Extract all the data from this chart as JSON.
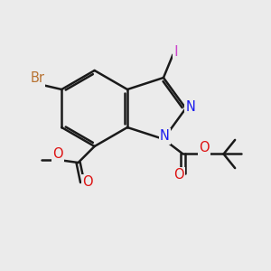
{
  "background_color": "#ebebeb",
  "bond_color": "#1a1a1a",
  "bond_width": 1.8,
  "atom_colors": {
    "Br": "#b87333",
    "I": "#cc44cc",
    "N": "#1a1aee",
    "O": "#dd1111",
    "C": "#1a1a1a"
  },
  "font_size_atoms": 10.5,
  "font_size_small": 9.5,
  "c3a": [
    4.7,
    6.7
  ],
  "c7a": [
    4.7,
    5.3
  ],
  "bl": 1.2
}
